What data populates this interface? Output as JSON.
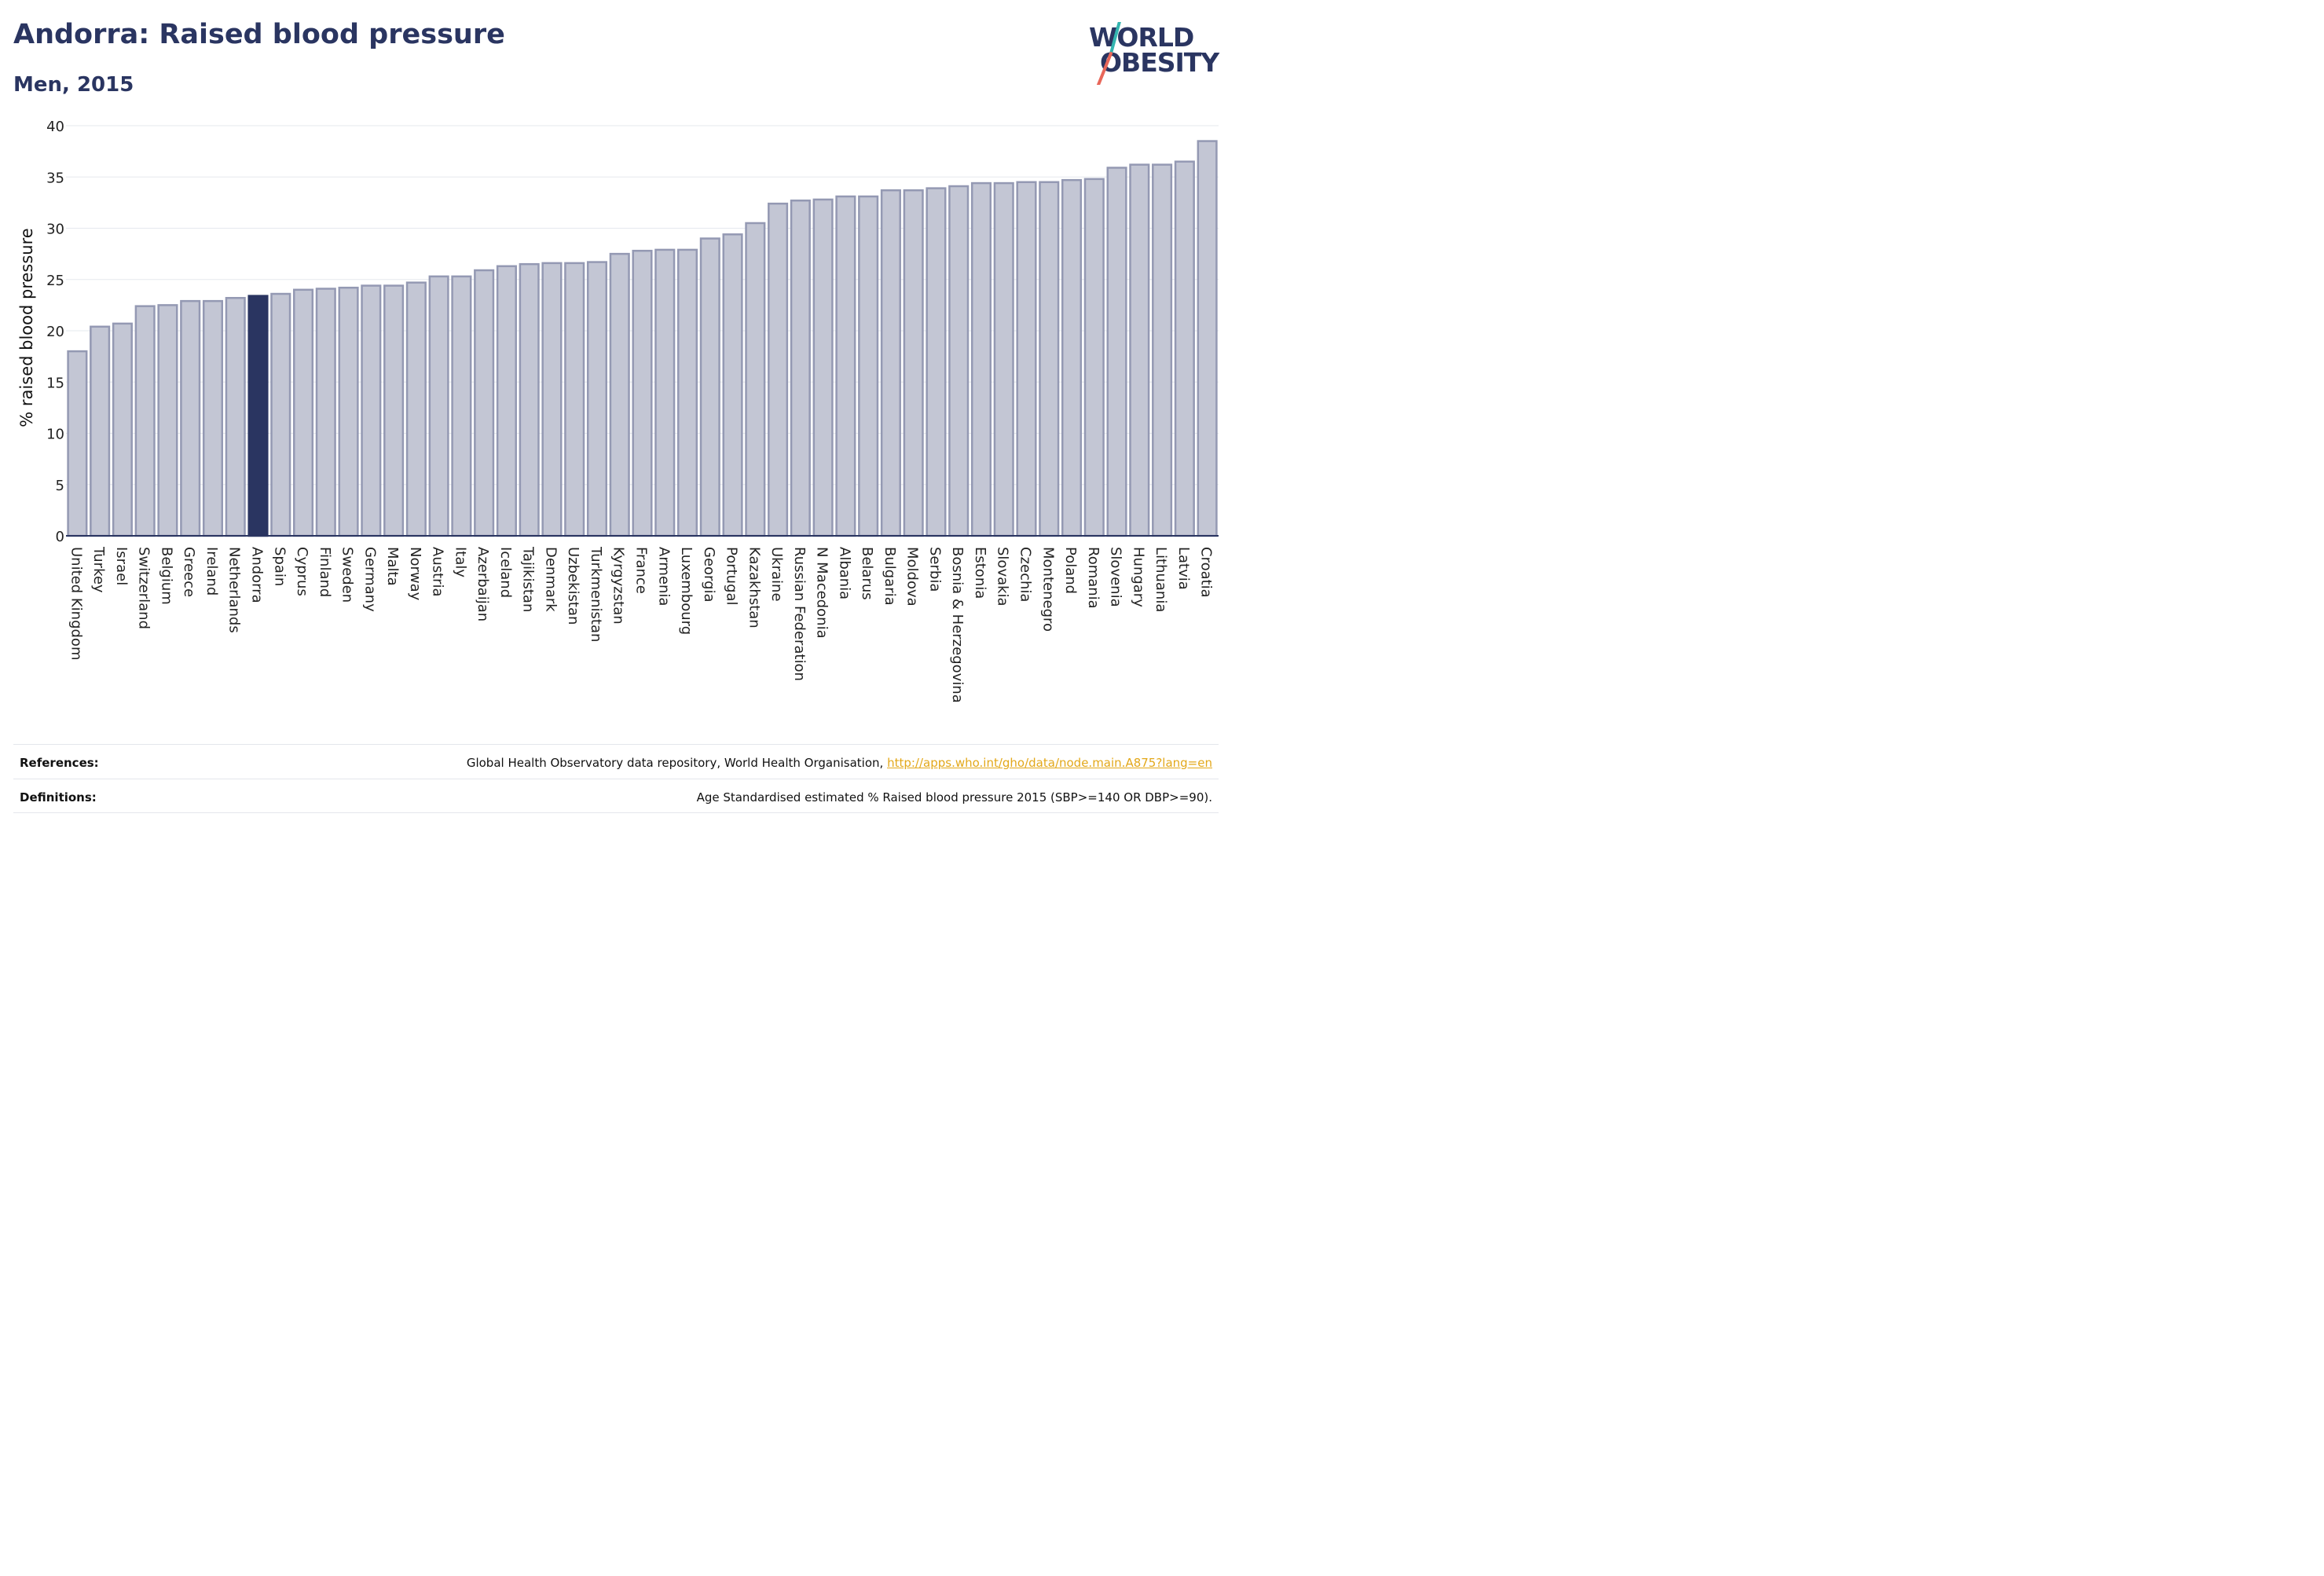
{
  "header": {
    "title": "Andorra: Raised blood pressure",
    "subtitle": "Men, 2015"
  },
  "logo": {
    "line1": "WORLD",
    "line2": "OBESITY",
    "slash_colors": [
      "#34b5b0",
      "#e8675a"
    ]
  },
  "colors": {
    "bar_fill": "#c3c6d4",
    "bar_stroke": "#9499b3",
    "highlight": "#2a3561",
    "grid": "#e6e8ee",
    "axis": "#2a3561"
  },
  "chart_data": {
    "type": "bar",
    "title": "Andorra: Raised blood pressure",
    "subtitle": "Men, 2015",
    "xlabel": "",
    "ylabel": "% raised blood pressure",
    "ylim": [
      0,
      40
    ],
    "yticks": [
      0,
      5,
      10,
      15,
      20,
      25,
      30,
      35,
      40
    ],
    "grid": true,
    "highlight": "Andorra",
    "categories": [
      "United Kingdom",
      "Turkey",
      "Israel",
      "Switzerland",
      "Belgium",
      "Greece",
      "Ireland",
      "Netherlands",
      "Andorra",
      "Spain",
      "Cyprus",
      "Finland",
      "Sweden",
      "Germany",
      "Malta",
      "Norway",
      "Austria",
      "Italy",
      "Azerbaijan",
      "Iceland",
      "Tajikistan",
      "Denmark",
      "Uzbekistan",
      "Turkmenistan",
      "Kyrgyzstan",
      "France",
      "Armenia",
      "Luxembourg",
      "Georgia",
      "Portugal",
      "Kazakhstan",
      "Ukraine",
      "Russian Federation",
      "N Macedonia",
      "Albania",
      "Belarus",
      "Bulgaria",
      "Moldova",
      "Serbia",
      "Bosnia & Herzegovina",
      "Estonia",
      "Slovakia",
      "Czechia",
      "Montenegro",
      "Poland",
      "Romania",
      "Slovenia",
      "Hungary",
      "Lithuania",
      "Latvia",
      "Croatia"
    ],
    "values": [
      18.0,
      20.4,
      20.7,
      22.4,
      22.5,
      22.9,
      22.9,
      23.2,
      23.4,
      23.6,
      24.0,
      24.1,
      24.2,
      24.4,
      24.4,
      24.7,
      25.3,
      25.3,
      25.9,
      26.3,
      26.5,
      26.6,
      26.6,
      26.7,
      27.5,
      27.8,
      27.9,
      27.9,
      29.0,
      29.4,
      30.5,
      32.4,
      32.7,
      32.8,
      33.1,
      33.1,
      33.7,
      33.7,
      33.9,
      34.1,
      34.4,
      34.4,
      34.5,
      34.5,
      34.7,
      34.8,
      35.9,
      36.2,
      36.2,
      36.5,
      38.5
    ]
  },
  "footer": {
    "references_label": "References:",
    "references_text": "Global Health Observatory data repository, World Health Organisation,",
    "references_link": "http://apps.who.int/gho/data/node.main.A875?lang=en",
    "definitions_label": "Definitions:",
    "definitions_text": "Age Standardised estimated % Raised blood pressure 2015 (SBP>=140 OR DBP>=90)."
  }
}
